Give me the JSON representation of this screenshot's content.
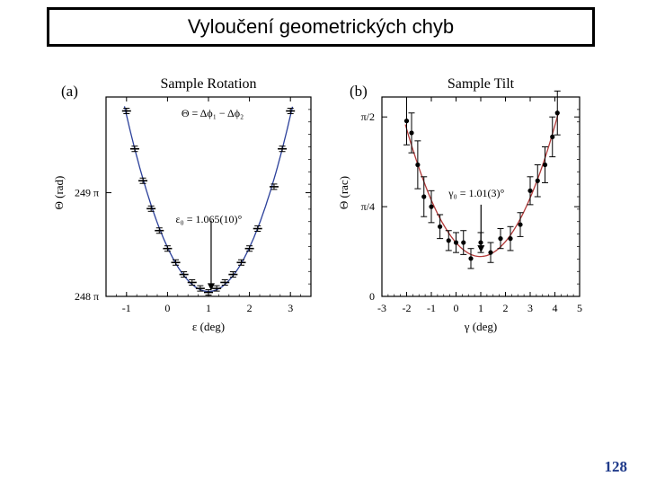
{
  "slide": {
    "title": "Vyloučení geometrických chyb",
    "page_number": "128"
  },
  "panels": {
    "a_label": "(a)",
    "b_label": "(b)"
  },
  "chart_data": [
    {
      "type": "scatter",
      "title": "Sample Rotation",
      "xlabel": "ε (deg)",
      "ylabel": "Θ (rad)",
      "xlim": [
        -1.5,
        3.5
      ],
      "ylim": [
        0,
        1
      ],
      "xticks": [
        -1,
        0,
        1,
        2,
        3
      ],
      "xtick_labels": [
        "-1",
        "0",
        "1",
        "2",
        "3"
      ],
      "yticks": [
        0,
        0.52
      ],
      "ytick_labels": [
        "248 π",
        "249 π"
      ],
      "annotation_formula": "Θ = Δϕ₁ − Δϕ₂",
      "annotation_min": "ε₀ = 1.065(10)°",
      "arrow_x": 1.065,
      "fit_color": "#2a3f9a",
      "points": [
        {
          "x": -1.0,
          "y": 0.93,
          "err": 0.01
        },
        {
          "x": -0.8,
          "y": 0.74,
          "err": 0.01
        },
        {
          "x": -0.6,
          "y": 0.58,
          "err": 0.01
        },
        {
          "x": -0.4,
          "y": 0.44,
          "err": 0.01
        },
        {
          "x": -0.2,
          "y": 0.33,
          "err": 0.01
        },
        {
          "x": 0.0,
          "y": 0.24,
          "err": 0.01
        },
        {
          "x": 0.2,
          "y": 0.17,
          "err": 0.01
        },
        {
          "x": 0.4,
          "y": 0.11,
          "err": 0.01
        },
        {
          "x": 0.6,
          "y": 0.07,
          "err": 0.01
        },
        {
          "x": 0.8,
          "y": 0.04,
          "err": 0.01
        },
        {
          "x": 1.0,
          "y": 0.02,
          "err": 0.01
        },
        {
          "x": 1.2,
          "y": 0.04,
          "err": 0.01
        },
        {
          "x": 1.4,
          "y": 0.07,
          "err": 0.01
        },
        {
          "x": 1.6,
          "y": 0.11,
          "err": 0.01
        },
        {
          "x": 1.8,
          "y": 0.17,
          "err": 0.01
        },
        {
          "x": 2.0,
          "y": 0.24,
          "err": 0.01
        },
        {
          "x": 2.2,
          "y": 0.34,
          "err": 0.01
        },
        {
          "x": 2.6,
          "y": 0.55,
          "err": 0.01
        },
        {
          "x": 2.8,
          "y": 0.74,
          "err": 0.01
        },
        {
          "x": 3.0,
          "y": 0.93,
          "err": 0.01
        }
      ]
    },
    {
      "type": "scatter",
      "title": "Sample Tilt",
      "xlabel": "γ (deg)",
      "ylabel": "Θ (rac)",
      "xlim": [
        -3,
        5
      ],
      "ylim": [
        0,
        1
      ],
      "xticks": [
        -3,
        -2,
        -1,
        0,
        1,
        2,
        3,
        4,
        5
      ],
      "xtick_labels": [
        "-3",
        "-2",
        "-1",
        "0",
        "1",
        "2",
        "3",
        "4",
        "5"
      ],
      "yticks": [
        0,
        0.45,
        0.9
      ],
      "ytick_labels": [
        "0",
        "π/4",
        "π/2"
      ],
      "annotation_min": "γ₀ = 1.01(3)°",
      "arrow_x": 1.01,
      "fit_color": "#b23a3a",
      "points": [
        {
          "x": -2.0,
          "y": 0.88,
          "err": 0.12
        },
        {
          "x": -1.8,
          "y": 0.82,
          "err": 0.1
        },
        {
          "x": -1.55,
          "y": 0.66,
          "err": 0.12
        },
        {
          "x": -1.3,
          "y": 0.5,
          "err": 0.1
        },
        {
          "x": -1.0,
          "y": 0.45,
          "err": 0.08
        },
        {
          "x": -0.65,
          "y": 0.35,
          "err": 0.06
        },
        {
          "x": -0.3,
          "y": 0.28,
          "err": 0.05
        },
        {
          "x": 0.0,
          "y": 0.27,
          "err": 0.05
        },
        {
          "x": 0.3,
          "y": 0.27,
          "err": 0.06
        },
        {
          "x": 0.6,
          "y": 0.19,
          "err": 0.05
        },
        {
          "x": 1.0,
          "y": 0.27,
          "err": 0.05
        },
        {
          "x": 1.4,
          "y": 0.22,
          "err": 0.05
        },
        {
          "x": 1.8,
          "y": 0.29,
          "err": 0.05
        },
        {
          "x": 2.2,
          "y": 0.29,
          "err": 0.06
        },
        {
          "x": 2.6,
          "y": 0.36,
          "err": 0.06
        },
        {
          "x": 3.0,
          "y": 0.53,
          "err": 0.07
        },
        {
          "x": 3.3,
          "y": 0.58,
          "err": 0.08
        },
        {
          "x": 3.6,
          "y": 0.66,
          "err": 0.09
        },
        {
          "x": 3.9,
          "y": 0.8,
          "err": 0.1
        },
        {
          "x": 4.1,
          "y": 0.92,
          "err": 0.11
        }
      ]
    }
  ]
}
